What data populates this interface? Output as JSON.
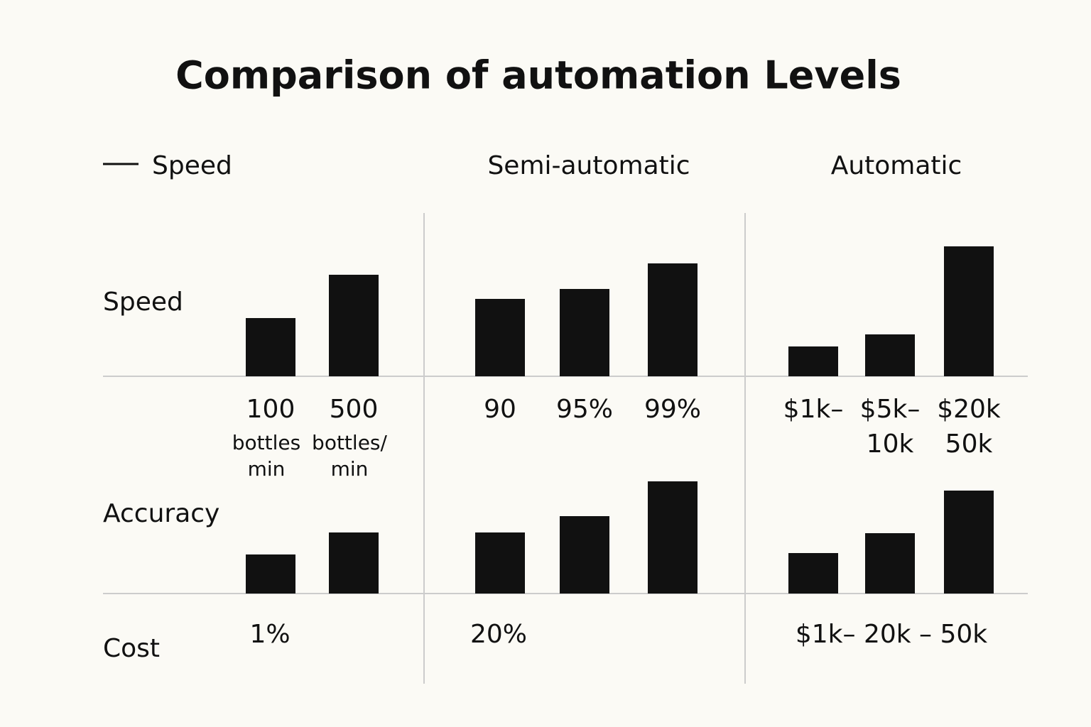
{
  "chart_data": {
    "type": "bar",
    "title": "Comparison of automation Levels",
    "legend": "Speed",
    "color": "#111111",
    "columns": [
      "Semi-automatic",
      "Automatic"
    ],
    "rows": [
      "Speed",
      "Accuracy",
      "Cost"
    ],
    "ylim": [
      0,
      200
    ],
    "panels": [
      {
        "groups": [
          [
            82,
            143
          ],
          [
            109,
            123,
            159
          ],
          [
            42,
            59,
            183
          ]
        ],
        "labels": [
          [
            [
              "100",
              "bottles",
              "min"
            ],
            [
              "500",
              "bottles/",
              "min"
            ]
          ],
          [
            [
              "90"
            ],
            [
              "95%"
            ],
            [
              "99%"
            ]
          ],
          [
            [
              "$1k–"
            ],
            [
              "$5k–",
              "10k"
            ],
            [
              "$20k",
              "50k"
            ]
          ]
        ]
      },
      {
        "groups": [
          [
            55,
            86
          ],
          [
            86,
            109,
            158
          ],
          [
            57,
            85,
            145
          ]
        ],
        "labels": [
          [
            "1%"
          ],
          [
            "20%"
          ],
          [
            "$1k– 20k – 50k"
          ]
        ]
      }
    ]
  }
}
